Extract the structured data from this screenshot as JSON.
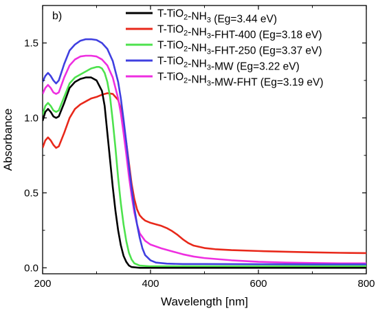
{
  "chart_data": {
    "type": "line",
    "panel_label": "b)",
    "xlabel": "Wavelength [nm]",
    "ylabel": "Absorbance",
    "xlim": [
      200,
      800
    ],
    "ylim": [
      -0.04,
      1.75
    ],
    "x_ticks": [
      200,
      400,
      600,
      800
    ],
    "x_tick_labels": [
      "200",
      "400",
      "600",
      "800"
    ],
    "y_ticks": [
      0.0,
      0.5,
      1.0,
      1.5
    ],
    "y_tick_labels": [
      "0.0",
      "0.5",
      "1.0",
      "1.5"
    ],
    "grid": false,
    "legend_position": "top-right",
    "series": [
      {
        "name": "T-TiO2-NH3 (Eg=3.44 eV)",
        "legend_parts": [
          [
            "T-TiO",
            ""
          ],
          [
            "2",
            "sub"
          ],
          [
            "-NH",
            ""
          ],
          [
            "3",
            "sub"
          ],
          [
            " (Eg=3.44 eV)",
            ""
          ]
        ],
        "color": "#000000",
        "points": [
          [
            200,
            0.98
          ],
          [
            205,
            1.04
          ],
          [
            210,
            1.06
          ],
          [
            215,
            1.04
          ],
          [
            220,
            1.01
          ],
          [
            225,
            1.0
          ],
          [
            230,
            1.01
          ],
          [
            240,
            1.1
          ],
          [
            250,
            1.2
          ],
          [
            260,
            1.24
          ],
          [
            270,
            1.26
          ],
          [
            280,
            1.27
          ],
          [
            290,
            1.27
          ],
          [
            300,
            1.25
          ],
          [
            310,
            1.18
          ],
          [
            315,
            1.08
          ],
          [
            320,
            0.9
          ],
          [
            325,
            0.72
          ],
          [
            330,
            0.54
          ],
          [
            335,
            0.38
          ],
          [
            340,
            0.25
          ],
          [
            345,
            0.15
          ],
          [
            350,
            0.08
          ],
          [
            355,
            0.04
          ],
          [
            360,
            0.015
          ],
          [
            365,
            0.005
          ],
          [
            380,
            0.0
          ],
          [
            800,
            0.0
          ]
        ]
      },
      {
        "name": "T-TiO2-NH3-FHT-400 (Eg=3.18 eV)",
        "legend_parts": [
          [
            "T-TiO",
            ""
          ],
          [
            "2",
            "sub"
          ],
          [
            "-NH",
            ""
          ],
          [
            "3",
            "sub"
          ],
          [
            "-FHT-400 (Eg=3.18 eV)",
            ""
          ]
        ],
        "color": "#e8281a",
        "points": [
          [
            200,
            0.8
          ],
          [
            205,
            0.85
          ],
          [
            210,
            0.87
          ],
          [
            215,
            0.85
          ],
          [
            220,
            0.82
          ],
          [
            225,
            0.8
          ],
          [
            230,
            0.81
          ],
          [
            240,
            0.9
          ],
          [
            250,
            1.0
          ],
          [
            260,
            1.06
          ],
          [
            270,
            1.09
          ],
          [
            280,
            1.11
          ],
          [
            290,
            1.13
          ],
          [
            300,
            1.14
          ],
          [
            310,
            1.155
          ],
          [
            320,
            1.165
          ],
          [
            330,
            1.16
          ],
          [
            340,
            1.12
          ],
          [
            345,
            1.06
          ],
          [
            350,
            0.96
          ],
          [
            355,
            0.84
          ],
          [
            360,
            0.7
          ],
          [
            365,
            0.56
          ],
          [
            370,
            0.46
          ],
          [
            375,
            0.39
          ],
          [
            380,
            0.35
          ],
          [
            385,
            0.33
          ],
          [
            390,
            0.315
          ],
          [
            400,
            0.3
          ],
          [
            410,
            0.29
          ],
          [
            420,
            0.28
          ],
          [
            430,
            0.265
          ],
          [
            440,
            0.245
          ],
          [
            450,
            0.22
          ],
          [
            460,
            0.19
          ],
          [
            470,
            0.165
          ],
          [
            480,
            0.148
          ],
          [
            500,
            0.132
          ],
          [
            520,
            0.124
          ],
          [
            550,
            0.118
          ],
          [
            600,
            0.112
          ],
          [
            650,
            0.107
          ],
          [
            700,
            0.103
          ],
          [
            750,
            0.1
          ],
          [
            800,
            0.098
          ]
        ]
      },
      {
        "name": "T-TiO2-NH3-FHT-250 (Eg=3.37 eV)",
        "legend_parts": [
          [
            "T-TiO",
            ""
          ],
          [
            "2",
            "sub"
          ],
          [
            "-NH",
            ""
          ],
          [
            "3",
            "sub"
          ],
          [
            "-FHT-250 (Eg=3.37 eV)",
            ""
          ]
        ],
        "color": "#4de24d",
        "points": [
          [
            200,
            1.02
          ],
          [
            205,
            1.08
          ],
          [
            210,
            1.1
          ],
          [
            215,
            1.08
          ],
          [
            220,
            1.05
          ],
          [
            225,
            1.04
          ],
          [
            230,
            1.05
          ],
          [
            240,
            1.14
          ],
          [
            250,
            1.23
          ],
          [
            260,
            1.27
          ],
          [
            270,
            1.29
          ],
          [
            280,
            1.31
          ],
          [
            290,
            1.33
          ],
          [
            300,
            1.34
          ],
          [
            305,
            1.34
          ],
          [
            310,
            1.33
          ],
          [
            315,
            1.3
          ],
          [
            320,
            1.24
          ],
          [
            325,
            1.14
          ],
          [
            330,
            0.98
          ],
          [
            335,
            0.8
          ],
          [
            340,
            0.6
          ],
          [
            345,
            0.43
          ],
          [
            350,
            0.29
          ],
          [
            355,
            0.18
          ],
          [
            360,
            0.1
          ],
          [
            365,
            0.055
          ],
          [
            370,
            0.03
          ],
          [
            380,
            0.015
          ],
          [
            400,
            0.01
          ],
          [
            500,
            0.01
          ],
          [
            600,
            0.01
          ],
          [
            700,
            0.01
          ],
          [
            800,
            0.01
          ]
        ]
      },
      {
        "name": "T-TiO2-NH3-MW (Eg=3.22 eV)",
        "legend_parts": [
          [
            "T-TiO",
            ""
          ],
          [
            "2",
            "sub"
          ],
          [
            "-NH",
            ""
          ],
          [
            "3",
            "sub"
          ],
          [
            "-MW (Eg=3.22 eV)",
            ""
          ]
        ],
        "color": "#3f3fe0",
        "points": [
          [
            200,
            1.24
          ],
          [
            205,
            1.28
          ],
          [
            210,
            1.3
          ],
          [
            215,
            1.28
          ],
          [
            220,
            1.25
          ],
          [
            225,
            1.23
          ],
          [
            230,
            1.25
          ],
          [
            240,
            1.36
          ],
          [
            250,
            1.45
          ],
          [
            260,
            1.49
          ],
          [
            270,
            1.515
          ],
          [
            280,
            1.525
          ],
          [
            290,
            1.525
          ],
          [
            300,
            1.52
          ],
          [
            310,
            1.5
          ],
          [
            320,
            1.46
          ],
          [
            330,
            1.38
          ],
          [
            340,
            1.24
          ],
          [
            345,
            1.13
          ],
          [
            350,
            0.99
          ],
          [
            355,
            0.84
          ],
          [
            360,
            0.68
          ],
          [
            365,
            0.53
          ],
          [
            370,
            0.4
          ],
          [
            375,
            0.29
          ],
          [
            380,
            0.2
          ],
          [
            385,
            0.13
          ],
          [
            390,
            0.085
          ],
          [
            400,
            0.05
          ],
          [
            410,
            0.035
          ],
          [
            430,
            0.028
          ],
          [
            460,
            0.025
          ],
          [
            500,
            0.025
          ],
          [
            600,
            0.024
          ],
          [
            700,
            0.023
          ],
          [
            800,
            0.023
          ]
        ]
      },
      {
        "name": "T-TiO2-NH3-MW-FHT (Eg=3.19 eV)",
        "legend_parts": [
          [
            "T-TiO",
            ""
          ],
          [
            "2",
            "sub"
          ],
          [
            "-NH",
            ""
          ],
          [
            "3",
            "sub"
          ],
          [
            "-MW-FHT (Eg=3.19 eV)",
            ""
          ]
        ],
        "color": "#ee2ee0",
        "points": [
          [
            200,
            1.16
          ],
          [
            205,
            1.2
          ],
          [
            210,
            1.22
          ],
          [
            215,
            1.2
          ],
          [
            220,
            1.17
          ],
          [
            225,
            1.16
          ],
          [
            230,
            1.17
          ],
          [
            240,
            1.27
          ],
          [
            250,
            1.35
          ],
          [
            260,
            1.39
          ],
          [
            270,
            1.41
          ],
          [
            280,
            1.415
          ],
          [
            290,
            1.415
          ],
          [
            300,
            1.41
          ],
          [
            310,
            1.39
          ],
          [
            320,
            1.35
          ],
          [
            330,
            1.27
          ],
          [
            340,
            1.13
          ],
          [
            345,
            1.03
          ],
          [
            350,
            0.9
          ],
          [
            355,
            0.76
          ],
          [
            360,
            0.61
          ],
          [
            365,
            0.48
          ],
          [
            370,
            0.37
          ],
          [
            375,
            0.29
          ],
          [
            380,
            0.23
          ],
          [
            390,
            0.18
          ],
          [
            400,
            0.155
          ],
          [
            420,
            0.13
          ],
          [
            440,
            0.11
          ],
          [
            460,
            0.09
          ],
          [
            480,
            0.075
          ],
          [
            500,
            0.065
          ],
          [
            550,
            0.05
          ],
          [
            600,
            0.04
          ],
          [
            650,
            0.035
          ],
          [
            700,
            0.032
          ],
          [
            750,
            0.03
          ],
          [
            800,
            0.03
          ]
        ]
      }
    ]
  }
}
